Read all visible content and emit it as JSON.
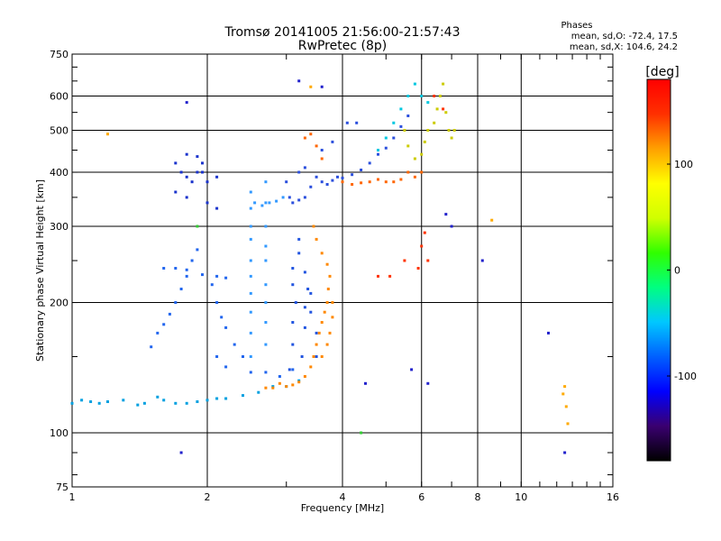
{
  "chart_data": {
    "type": "scatter",
    "title": "Tromsø 20141005 21:56:00-21:57:43",
    "subtitle": "RwPretec (8p)",
    "xlabel": "Frequency [MHz]",
    "ylabel": "Stationary phase Virtual Height [km]",
    "x_scale": "log",
    "y_scale": "log",
    "xlim": [
      1,
      16
    ],
    "ylim": [
      75,
      750
    ],
    "x_ticks": [
      1,
      2,
      4,
      6,
      8,
      10,
      16
    ],
    "x_tick_labels": [
      "1",
      "2",
      "4",
      "6",
      "8",
      "10",
      "16"
    ],
    "y_ticks": [
      75,
      100,
      200,
      300,
      400,
      500,
      600,
      750
    ],
    "y_tick_labels": [
      "75",
      "100",
      "200",
      "300",
      "400",
      "500",
      "600",
      "750"
    ],
    "grid_x": [
      2,
      4,
      6,
      8,
      10
    ],
    "grid_y": [
      100,
      200,
      300,
      400,
      500,
      600
    ],
    "grid": true,
    "legend": {
      "title": "Phases",
      "lines": [
        "mean, sd,O: -72.4, 17.5",
        "mean, sd,X: 104.6, 24.2"
      ],
      "placement": "top-right"
    },
    "colorbar": {
      "label": "[deg]",
      "range": [
        -180,
        180
      ],
      "ticks": [
        100,
        0,
        -100
      ],
      "tick_labels": [
        "100",
        "0",
        "-100"
      ],
      "colors": [
        "#000000",
        "#3a0070",
        "#0000ff",
        "#0060ff",
        "#00c8ff",
        "#00ff80",
        "#30ff00",
        "#d0ff00",
        "#ffff00",
        "#ffa000",
        "#ff3000",
        "#ff0000"
      ]
    },
    "series": [
      {
        "color": "#00a0e0",
        "points": [
          [
            1.0,
            117
          ],
          [
            1.05,
            119
          ],
          [
            1.1,
            118
          ],
          [
            1.15,
            117
          ],
          [
            1.2,
            118
          ],
          [
            1.3,
            119
          ],
          [
            1.4,
            116
          ],
          [
            1.45,
            117
          ],
          [
            1.55,
            121
          ],
          [
            1.6,
            119
          ],
          [
            1.7,
            117
          ],
          [
            1.8,
            117
          ],
          [
            1.9,
            118
          ],
          [
            2.0,
            119
          ],
          [
            2.1,
            120
          ],
          [
            2.2,
            120
          ],
          [
            2.4,
            122
          ],
          [
            2.6,
            124
          ],
          [
            2.8,
            128
          ],
          [
            3.0,
            128
          ],
          [
            3.2,
            132
          ]
        ]
      },
      {
        "color": "#2266ee",
        "points": [
          [
            1.5,
            158
          ],
          [
            1.55,
            170
          ],
          [
            1.6,
            178
          ],
          [
            1.65,
            188
          ],
          [
            1.7,
            200
          ],
          [
            1.75,
            215
          ],
          [
            1.8,
            230
          ],
          [
            1.85,
            250
          ],
          [
            1.9,
            265
          ],
          [
            1.6,
            240
          ],
          [
            1.7,
            240
          ],
          [
            1.8,
            238
          ],
          [
            1.95,
            232
          ],
          [
            2.1,
            230
          ],
          [
            2.2,
            228
          ],
          [
            2.05,
            220
          ],
          [
            2.1,
            200
          ],
          [
            2.15,
            185
          ],
          [
            2.2,
            175
          ],
          [
            2.3,
            160
          ],
          [
            2.4,
            150
          ],
          [
            2.1,
            150
          ],
          [
            2.2,
            142
          ],
          [
            2.5,
            138
          ],
          [
            2.7,
            138
          ],
          [
            2.9,
            135
          ],
          [
            3.1,
            140
          ]
        ]
      },
      {
        "color": "#3399ff",
        "points": [
          [
            2.5,
            150
          ],
          [
            2.5,
            170
          ],
          [
            2.5,
            190
          ],
          [
            2.5,
            210
          ],
          [
            2.5,
            230
          ],
          [
            2.5,
            250
          ],
          [
            2.5,
            280
          ],
          [
            2.5,
            300
          ],
          [
            2.5,
            330
          ],
          [
            2.5,
            360
          ],
          [
            2.7,
            160
          ],
          [
            2.7,
            180
          ],
          [
            2.7,
            200
          ],
          [
            2.7,
            220
          ],
          [
            2.7,
            250
          ],
          [
            2.7,
            270
          ],
          [
            2.7,
            300
          ],
          [
            2.7,
            340
          ],
          [
            2.7,
            380
          ],
          [
            2.55,
            340
          ],
          [
            2.65,
            335
          ],
          [
            2.75,
            340
          ],
          [
            2.85,
            343
          ],
          [
            2.95,
            350
          ]
        ]
      },
      {
        "color": "#1a33cc",
        "points": [
          [
            1.7,
            420
          ],
          [
            1.75,
            400
          ],
          [
            1.8,
            390
          ],
          [
            1.85,
            380
          ],
          [
            1.9,
            400
          ],
          [
            1.95,
            420
          ],
          [
            1.8,
            440
          ],
          [
            1.9,
            435
          ],
          [
            1.7,
            360
          ],
          [
            1.8,
            350
          ],
          [
            2.0,
            380
          ],
          [
            1.95,
            400
          ],
          [
            2.0,
            340
          ],
          [
            2.1,
            390
          ],
          [
            2.1,
            330
          ]
        ]
      },
      {
        "color": "#2b4fdd",
        "points": [
          [
            3.0,
            380
          ],
          [
            3.05,
            350
          ],
          [
            3.1,
            340
          ],
          [
            3.2,
            345
          ],
          [
            3.3,
            350
          ],
          [
            3.4,
            370
          ],
          [
            3.5,
            390
          ],
          [
            3.6,
            380
          ],
          [
            3.7,
            375
          ],
          [
            3.8,
            383
          ],
          [
            3.9,
            390
          ],
          [
            4.0,
            388
          ],
          [
            4.2,
            395
          ],
          [
            4.4,
            405
          ],
          [
            4.6,
            420
          ],
          [
            4.8,
            440
          ],
          [
            5.0,
            455
          ],
          [
            5.2,
            480
          ],
          [
            5.4,
            510
          ],
          [
            5.6,
            540
          ],
          [
            3.2,
            400
          ],
          [
            3.3,
            410
          ],
          [
            3.6,
            450
          ],
          [
            3.8,
            470
          ],
          [
            4.1,
            520
          ],
          [
            4.3,
            520
          ]
        ]
      },
      {
        "color": "#2255e0",
        "points": [
          [
            3.05,
            140
          ],
          [
            3.1,
            160
          ],
          [
            3.1,
            180
          ],
          [
            3.15,
            200
          ],
          [
            3.1,
            220
          ],
          [
            3.1,
            240
          ],
          [
            3.2,
            260
          ],
          [
            3.2,
            280
          ],
          [
            3.25,
            150
          ],
          [
            3.3,
            175
          ],
          [
            3.3,
            195
          ],
          [
            3.35,
            215
          ],
          [
            3.3,
            235
          ],
          [
            3.4,
            210
          ],
          [
            3.4,
            190
          ],
          [
            3.5,
            150
          ],
          [
            3.5,
            170
          ]
        ]
      },
      {
        "color": "#ff8800",
        "points": [
          [
            2.7,
            127
          ],
          [
            2.8,
            127
          ],
          [
            2.9,
            130
          ],
          [
            3.0,
            128
          ],
          [
            3.1,
            129
          ],
          [
            3.2,
            131
          ],
          [
            3.3,
            135
          ],
          [
            3.4,
            142
          ],
          [
            3.45,
            150
          ],
          [
            3.5,
            160
          ],
          [
            3.55,
            170
          ],
          [
            3.6,
            180
          ],
          [
            3.65,
            190
          ],
          [
            3.7,
            200
          ],
          [
            3.72,
            215
          ],
          [
            3.75,
            230
          ],
          [
            3.7,
            245
          ],
          [
            3.6,
            260
          ],
          [
            3.5,
            280
          ],
          [
            3.45,
            300
          ],
          [
            3.6,
            150
          ],
          [
            3.7,
            160
          ],
          [
            3.75,
            170
          ],
          [
            3.8,
            185
          ],
          [
            3.8,
            200
          ]
        ]
      },
      {
        "color": "#ff6600",
        "points": [
          [
            3.3,
            480
          ],
          [
            3.4,
            490
          ],
          [
            3.5,
            460
          ],
          [
            3.6,
            430
          ],
          [
            4.0,
            380
          ],
          [
            4.2,
            375
          ],
          [
            4.4,
            378
          ],
          [
            4.6,
            380
          ],
          [
            4.8,
            385
          ],
          [
            5.0,
            380
          ],
          [
            5.2,
            380
          ],
          [
            5.4,
            385
          ],
          [
            5.6,
            400
          ],
          [
            5.8,
            390
          ],
          [
            6.0,
            400
          ]
        ]
      },
      {
        "color": "#cccc00",
        "points": [
          [
            5.5,
            500
          ],
          [
            5.6,
            460
          ],
          [
            5.8,
            430
          ],
          [
            6.0,
            440
          ],
          [
            6.1,
            470
          ],
          [
            6.2,
            500
          ],
          [
            6.4,
            520
          ],
          [
            6.5,
            560
          ],
          [
            6.6,
            600
          ],
          [
            6.7,
            640
          ],
          [
            6.8,
            550
          ],
          [
            6.9,
            500
          ],
          [
            7.0,
            480
          ],
          [
            7.1,
            500
          ]
        ]
      },
      {
        "color": "#00c8e0",
        "points": [
          [
            4.8,
            450
          ],
          [
            5.0,
            480
          ],
          [
            5.2,
            520
          ],
          [
            5.4,
            560
          ],
          [
            5.6,
            600
          ],
          [
            5.8,
            640
          ],
          [
            6.0,
            600
          ],
          [
            6.2,
            580
          ]
        ]
      },
      {
        "color": "#ff3300",
        "points": [
          [
            6.1,
            290
          ],
          [
            6.0,
            270
          ],
          [
            5.9,
            240
          ],
          [
            5.5,
            250
          ],
          [
            6.2,
            250
          ],
          [
            5.1,
            230
          ],
          [
            4.8,
            230
          ],
          [
            6.4,
            600
          ],
          [
            6.7,
            560
          ]
        ]
      },
      {
        "color": "#2222cc",
        "points": [
          [
            1.75,
            90
          ],
          [
            4.5,
            130
          ],
          [
            5.7,
            140
          ],
          [
            6.2,
            130
          ],
          [
            6.8,
            320
          ],
          [
            7.0,
            300
          ],
          [
            8.2,
            250
          ],
          [
            11.5,
            170
          ],
          [
            12.5,
            90
          ],
          [
            1.8,
            580
          ],
          [
            3.2,
            650
          ],
          [
            3.6,
            630
          ]
        ]
      },
      {
        "color": "#ffaa00",
        "points": [
          [
            12.5,
            128
          ],
          [
            12.6,
            115
          ],
          [
            12.7,
            105
          ],
          [
            12.4,
            123
          ],
          [
            1.2,
            490
          ],
          [
            3.4,
            630
          ],
          [
            8.6,
            310
          ]
        ]
      },
      {
        "color": "#33cc33",
        "points": [
          [
            1.9,
            300
          ],
          [
            4.4,
            100
          ]
        ]
      }
    ]
  }
}
